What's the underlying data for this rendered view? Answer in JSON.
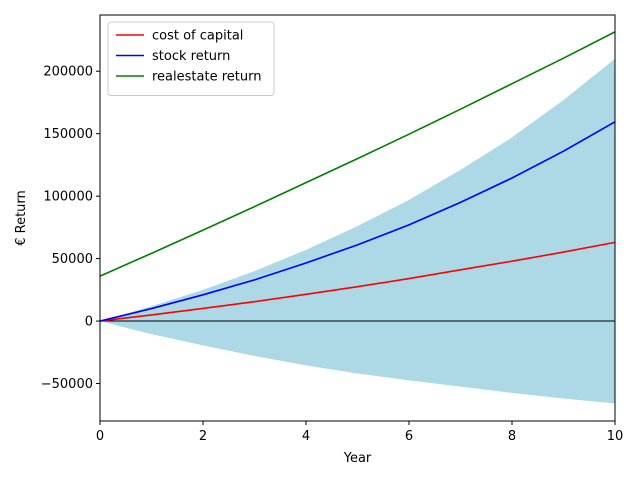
{
  "chart_data": {
    "type": "line",
    "title": "",
    "xlabel": "Year",
    "ylabel": "€ Return",
    "xlim": [
      0,
      10
    ],
    "ylim": [
      -80000,
      245000
    ],
    "xticks": [
      0,
      2,
      4,
      6,
      8,
      10
    ],
    "yticks": [
      -50000,
      0,
      50000,
      100000,
      150000,
      200000
    ],
    "grid": false,
    "legend_position": "upper-left",
    "series": [
      {
        "name": "cost of capital",
        "color": "#ff0000",
        "x": [
          0,
          1,
          2,
          3,
          4,
          5,
          6,
          7,
          8,
          9,
          10
        ],
        "y": [
          0,
          4900,
          10100,
          15500,
          21400,
          27500,
          34000,
          41000,
          47900,
          55200,
          63000
        ]
      },
      {
        "name": "stock return",
        "color": "#0000ff",
        "x": [
          0,
          1,
          2,
          3,
          4,
          5,
          6,
          7,
          8,
          9,
          10
        ],
        "y": [
          0,
          10000,
          21000,
          33000,
          46500,
          61000,
          77000,
          95000,
          114500,
          136000,
          159500
        ]
      },
      {
        "name": "realestate return",
        "color": "#008000",
        "x": [
          0,
          1,
          2,
          3,
          4,
          5,
          6,
          7,
          8,
          9,
          10
        ],
        "y": [
          36000,
          54200,
          72800,
          91600,
          110800,
          130000,
          149600,
          169600,
          190000,
          210400,
          231500
        ]
      }
    ],
    "band": {
      "color": "#add8e6",
      "x": [
        0,
        1,
        2,
        3,
        4,
        5,
        6,
        7,
        8,
        9,
        10
      ],
      "upper": [
        0,
        12000,
        25000,
        40000,
        57000,
        76000,
        97000,
        121000,
        147000,
        177000,
        210000
      ],
      "lower": [
        0,
        -10500,
        -19500,
        -28000,
        -35500,
        -42000,
        -47500,
        -52500,
        -57500,
        -62000,
        -66000
      ]
    },
    "reference_line": {
      "y": 0,
      "color": "#000000"
    }
  }
}
